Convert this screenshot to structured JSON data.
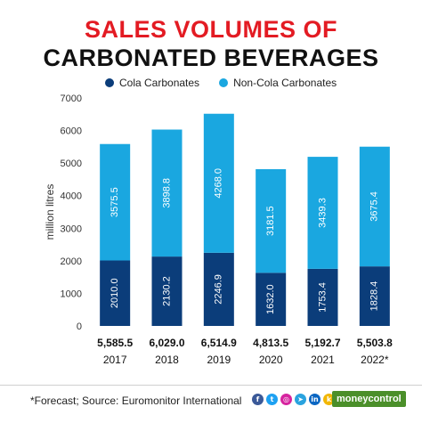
{
  "header": {
    "title_line1": "SALES VOLUMES OF",
    "title_line2": "CARBONATED BEVERAGES"
  },
  "colors": {
    "title_line1": "#e31b23",
    "title_line2": "#111111",
    "cola": "#0b3d7a",
    "non_cola": "#1aa7e0"
  },
  "chart_data": {
    "type": "bar",
    "stacked": true,
    "categories": [
      "2017",
      "2018",
      "2019",
      "2020",
      "2021",
      "2022*"
    ],
    "series": [
      {
        "name": "Cola Carbonates",
        "values": [
          2010.0,
          2130.2,
          2246.9,
          1632.0,
          1753.4,
          1828.4
        ],
        "labels": [
          "2010.0",
          "2130.2",
          "2246.9",
          "1632.0",
          "1753.4",
          "1828.4"
        ]
      },
      {
        "name": "Non-Cola Carbonates",
        "values": [
          3575.5,
          3898.8,
          4268.0,
          3181.5,
          3439.3,
          3675.4
        ],
        "labels": [
          "3575.5",
          "3898.8",
          "4268.0",
          "3181.5",
          "3439.3",
          "3675.4"
        ]
      }
    ],
    "totals": [
      "5,585.5",
      "6,029.0",
      "6,514.9",
      "4,813.5",
      "5,192.7",
      "5,503.8"
    ],
    "ylabel": "million litres",
    "ylim": [
      0,
      7000
    ],
    "yticks": [
      0,
      1000,
      2000,
      3000,
      4000,
      5000,
      6000,
      7000
    ],
    "ytick_labels": [
      "0",
      "1000",
      "2000",
      "3000",
      "4000",
      "5000",
      "6000",
      "7000"
    ],
    "grid": false,
    "legend_position": "top"
  },
  "footer": {
    "note": "*Forecast; Source: Euromonitor International",
    "brand": "moneycontrol",
    "social_icons": [
      "facebook-icon",
      "twitter-icon",
      "instagram-icon",
      "telegram-icon",
      "linkedin-icon",
      "koo-icon"
    ]
  }
}
